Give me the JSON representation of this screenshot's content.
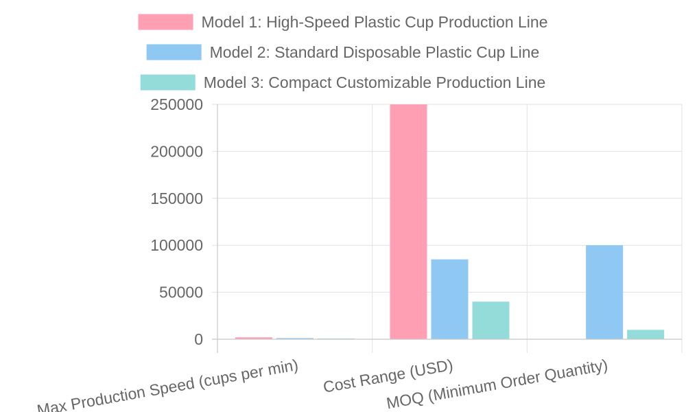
{
  "chart_data": {
    "type": "bar",
    "categories": [
      "Max Production Speed (cups per min)",
      "Cost Range (USD)",
      "MOQ (Minimum Order Quantity)"
    ],
    "series": [
      {
        "name": "Model 1: High-Speed Plastic Cup Production Line",
        "values": [
          2000,
          250000,
          0
        ],
        "color": "#ff9fb3",
        "border": "#ff6384"
      },
      {
        "name": "Model 2: Standard Disposable Plastic Cup Line",
        "values": [
          1200,
          85000,
          100000
        ],
        "color": "#8ec8f3",
        "border": "#36a2eb"
      },
      {
        "name": "Model 3: Compact Customizable Production Line",
        "values": [
          800,
          40000,
          10000
        ],
        "color": "#93dcd9",
        "border": "#4bc0c0"
      }
    ],
    "ylim": [
      0,
      250000
    ],
    "yticks": [
      "0",
      "50000",
      "100000",
      "150000",
      "200000",
      "250000"
    ],
    "grid": true,
    "legend_position": "top"
  }
}
